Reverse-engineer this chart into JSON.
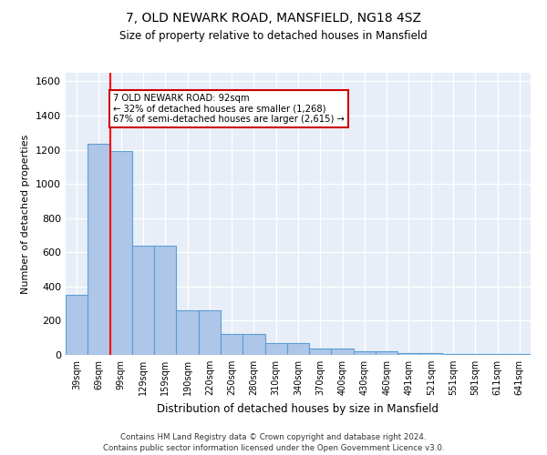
{
  "title1": "7, OLD NEWARK ROAD, MANSFIELD, NG18 4SZ",
  "title2": "Size of property relative to detached houses in Mansfield",
  "xlabel": "Distribution of detached houses by size in Mansfield",
  "ylabel": "Number of detached properties",
  "categories": [
    "39sqm",
    "69sqm",
    "99sqm",
    "129sqm",
    "159sqm",
    "190sqm",
    "220sqm",
    "250sqm",
    "280sqm",
    "310sqm",
    "340sqm",
    "370sqm",
    "400sqm",
    "430sqm",
    "460sqm",
    "491sqm",
    "521sqm",
    "551sqm",
    "581sqm",
    "611sqm",
    "641sqm"
  ],
  "values": [
    350,
    1235,
    1190,
    640,
    640,
    260,
    260,
    125,
    125,
    70,
    70,
    35,
    35,
    20,
    20,
    10,
    10,
    5,
    5,
    5,
    5
  ],
  "bar_color": "#aec6e8",
  "bar_edge_color": "#5a9fd4",
  "red_line_index": 2,
  "annotation_text": "7 OLD NEWARK ROAD: 92sqm\n← 32% of detached houses are smaller (1,268)\n67% of semi-detached houses are larger (2,615) →",
  "annotation_box_color": "#ffffff",
  "annotation_box_edge": "#cc0000",
  "ylim": [
    0,
    1650
  ],
  "yticks": [
    0,
    200,
    400,
    600,
    800,
    1000,
    1200,
    1400,
    1600
  ],
  "bg_color": "#e8eef8",
  "footer1": "Contains HM Land Registry data © Crown copyright and database right 2024.",
  "footer2": "Contains public sector information licensed under the Open Government Licence v3.0."
}
